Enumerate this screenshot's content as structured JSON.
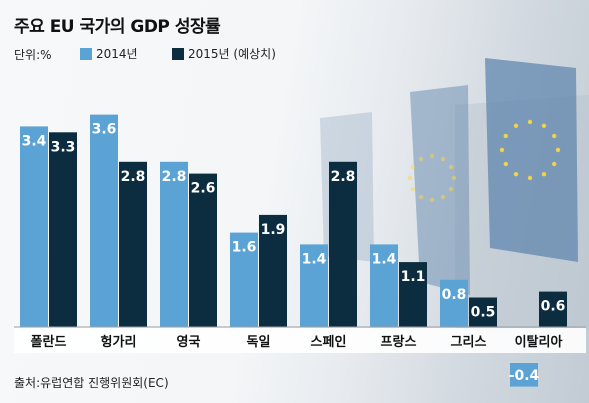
{
  "header": {
    "title": "주요 EU 국가의 GDP 성장률"
  },
  "unit_label": "단위:%",
  "source": "출처:유럽연합 진행위원회(EC)",
  "colors": {
    "series_2014": "#5ba3d4",
    "series_2015": "#0c2c3f",
    "background_flag": "#6b8fb5"
  },
  "chart_data": {
    "type": "bar",
    "title": "주요 EU 국가의 GDP 성장률",
    "ylabel": "",
    "categories": [
      "폴란드",
      "헝가리",
      "영국",
      "독일",
      "스페인",
      "프랑스",
      "그리스",
      "이탈리아"
    ],
    "series": [
      {
        "name": "2014년",
        "values": [
          3.4,
          3.6,
          2.8,
          1.6,
          1.4,
          1.4,
          0.8,
          -0.4
        ]
      },
      {
        "name": "2015년 (예상치)",
        "values": [
          3.3,
          2.8,
          2.6,
          1.9,
          2.8,
          1.1,
          0.5,
          0.6
        ]
      }
    ],
    "value_labels": [
      [
        "3.4",
        "3.6",
        "2.8",
        "1.6",
        "1.4",
        "1.4",
        "0.8",
        "-0.4"
      ],
      [
        "3.3",
        "2.8",
        "2.6",
        "1.9",
        "2.8",
        "1.1",
        "0.5",
        "0.6"
      ]
    ],
    "ylim": [
      -0.4,
      3.6
    ],
    "grid": false,
    "legend": "top-left"
  }
}
